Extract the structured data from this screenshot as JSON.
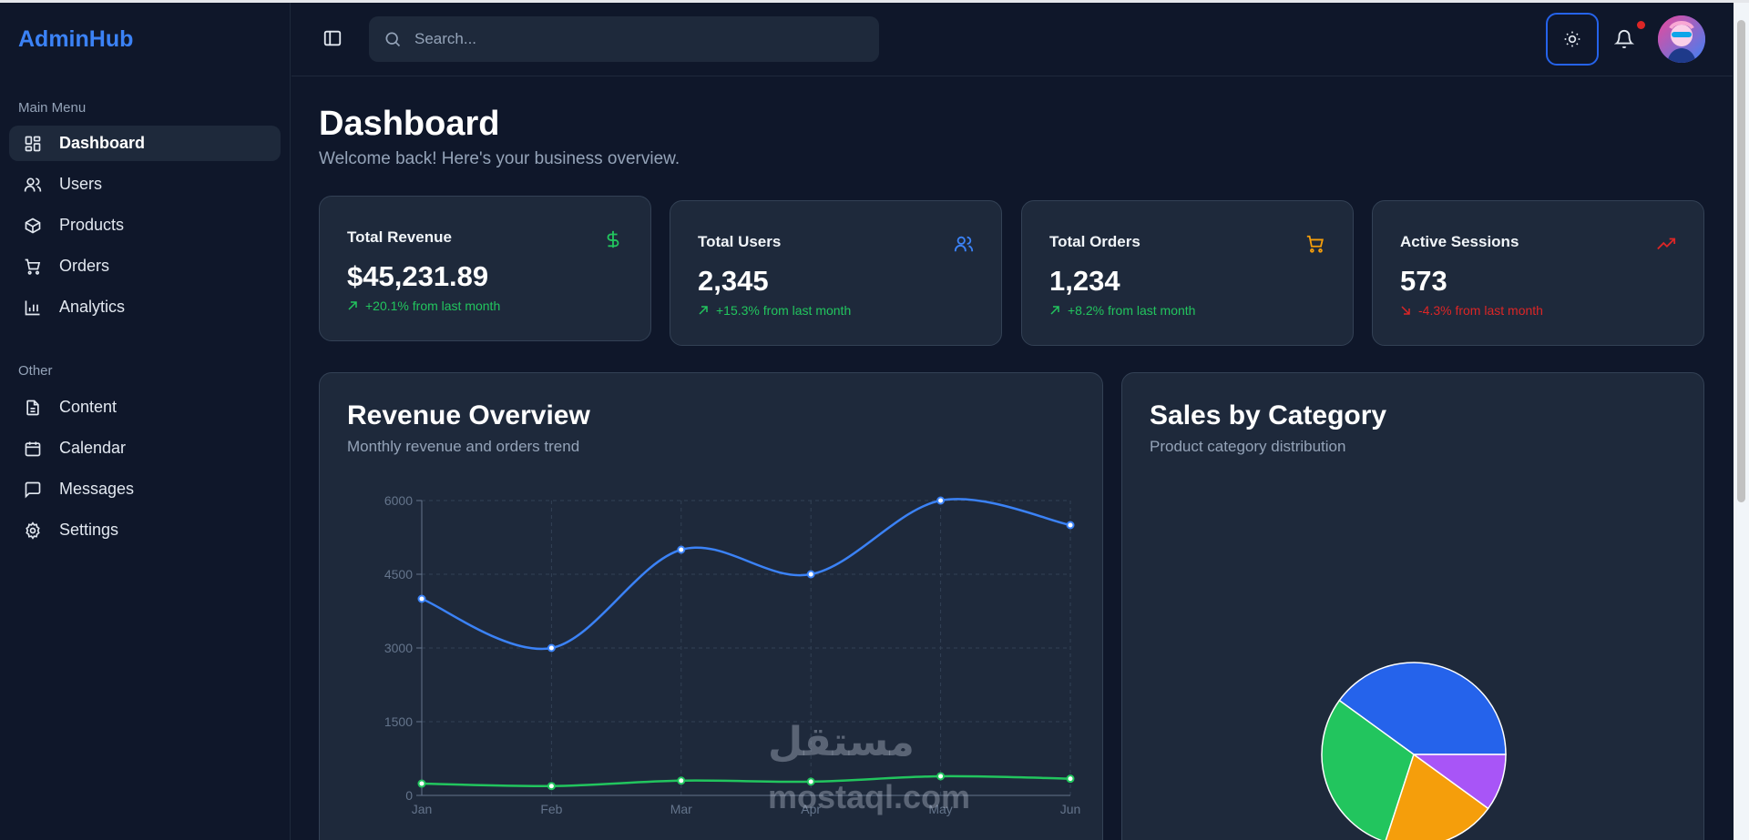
{
  "sidebar": {
    "brand": "AdminHub",
    "main_menu_label": "Main Menu",
    "main_items": [
      {
        "label": "Dashboard",
        "icon": "dashboard-grid-icon",
        "active": true
      },
      {
        "label": "Users",
        "icon": "users-icon"
      },
      {
        "label": "Products",
        "icon": "package-icon"
      },
      {
        "label": "Orders",
        "icon": "cart-icon"
      },
      {
        "label": "Analytics",
        "icon": "bar-chart-icon"
      }
    ],
    "other_label": "Other",
    "other_items": [
      {
        "label": "Content",
        "icon": "file-text-icon"
      },
      {
        "label": "Calendar",
        "icon": "calendar-icon"
      },
      {
        "label": "Messages",
        "icon": "message-square-icon"
      },
      {
        "label": "Settings",
        "icon": "gear-icon"
      }
    ]
  },
  "header": {
    "search_placeholder": "Search..."
  },
  "page": {
    "title": "Dashboard",
    "subtitle": "Welcome back! Here's your business overview."
  },
  "stats": [
    {
      "title": "Total Revenue",
      "value": "$45,231.89",
      "change": "+20.1% from last month",
      "trend": "up",
      "icon": "dollar-icon",
      "color": "#22c55e"
    },
    {
      "title": "Total Users",
      "value": "2,345",
      "change": "+15.3% from last month",
      "trend": "up",
      "icon": "users-icon",
      "color": "#3b82f6"
    },
    {
      "title": "Total Orders",
      "value": "1,234",
      "change": "+8.2% from last month",
      "trend": "up",
      "icon": "cart-icon",
      "color": "#f59e0b"
    },
    {
      "title": "Active Sessions",
      "value": "573",
      "change": "-4.3% from last month",
      "trend": "down",
      "icon": "trending-icon",
      "color": "#dc2626"
    }
  ],
  "revenue_panel": {
    "title": "Revenue Overview",
    "subtitle": "Monthly revenue and orders trend"
  },
  "sales_panel": {
    "title": "Sales by Category",
    "subtitle": "Product category distribution"
  },
  "chart_data": [
    {
      "type": "line",
      "categories": [
        "Jan",
        "Feb",
        "Mar",
        "Apr",
        "May",
        "Jun"
      ],
      "ylim": [
        0,
        6000
      ],
      "yticks": [
        0,
        1500,
        3000,
        4500,
        6000
      ],
      "grid": true,
      "series": [
        {
          "values": [
            4000,
            3000,
            5000,
            4500,
            6000,
            5500
          ],
          "color": "#3b82f6"
        },
        {
          "values": [
            240,
            190,
            300,
            280,
            390,
            340
          ],
          "color": "#22c55e"
        }
      ]
    },
    {
      "type": "pie",
      "slices": [
        {
          "value": 40,
          "color": "#2563eb"
        },
        {
          "value": 30,
          "color": "#22c55e"
        },
        {
          "value": 20,
          "color": "#f59e0b"
        },
        {
          "value": 10,
          "color": "#a855f7"
        }
      ]
    }
  ],
  "watermark": {
    "arabic": "مستقل",
    "latin": "mostaql.com"
  }
}
